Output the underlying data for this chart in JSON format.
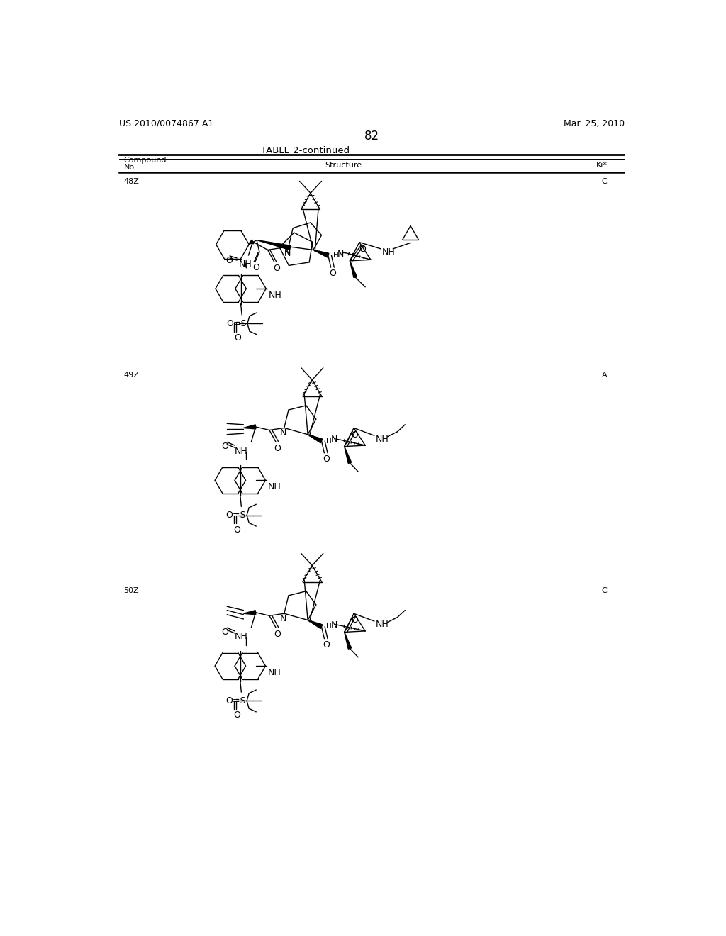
{
  "bg": "#ffffff",
  "header_left": "US 2010/0074867 A1",
  "header_right": "Mar. 25, 2010",
  "page_num": "82",
  "table_title": "TABLE 2-continued",
  "compounds": [
    {
      "id": "48Z",
      "ki": "C"
    },
    {
      "id": "49Z",
      "ki": "A"
    },
    {
      "id": "50Z",
      "ki": "C"
    }
  ]
}
